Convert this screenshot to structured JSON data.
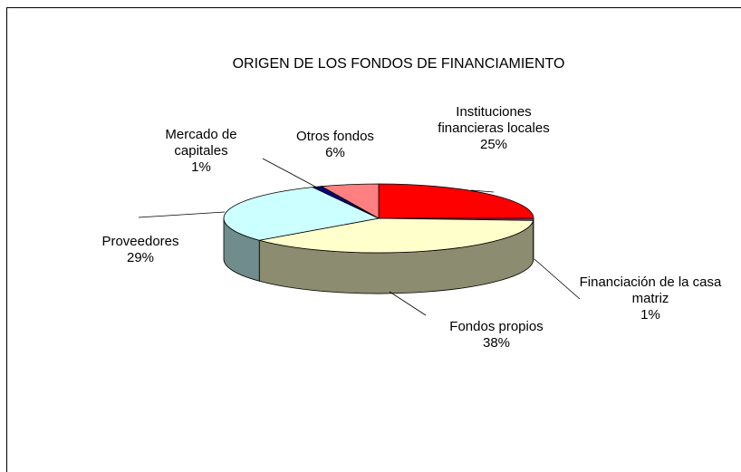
{
  "chart_data": {
    "type": "pie3d",
    "title": "ORIGEN DE LOS FONDOS DE FINANCIAMIENTO",
    "categories": [
      "Instituciones financieras locales",
      "Financiación de la casa matriz",
      "Fondos propios",
      "Proveedores",
      "Mercado de capitales",
      "Otros fondos"
    ],
    "values": [
      25,
      1,
      38,
      29,
      1,
      6
    ],
    "value_labels": [
      "25%",
      "1%",
      "38%",
      "29%",
      "1%",
      "6%"
    ],
    "colors": [
      "#ff0000",
      "#993366",
      "#ffffcc",
      "#ccffff",
      "#000080",
      "#ff8080"
    ]
  }
}
